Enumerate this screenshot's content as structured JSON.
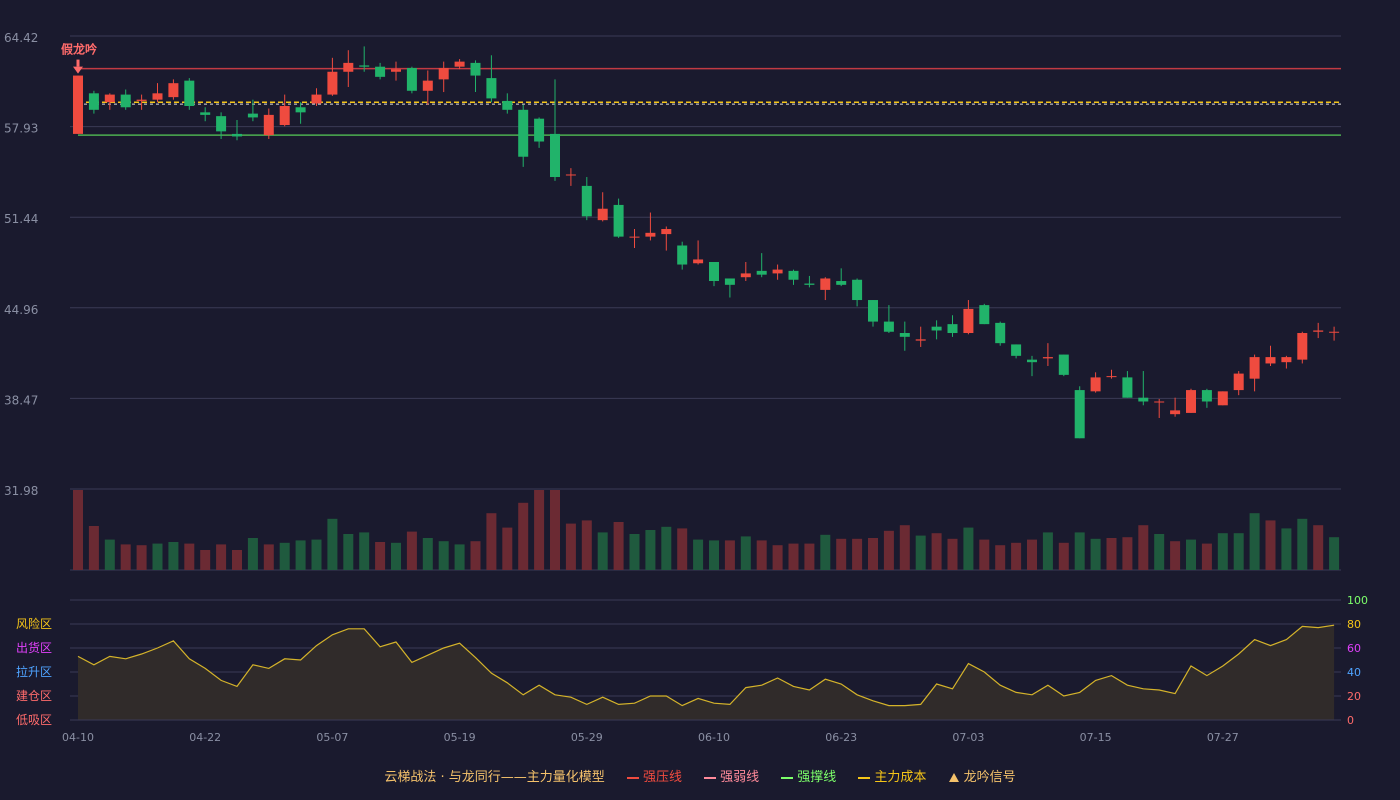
{
  "colors": {
    "background": "#1a1a2e",
    "up": "#ef4b3f",
    "down": "#21b36a",
    "grid": "#3a3a55",
    "axis_text": "#8a8fa3",
    "pressure_line": "#c23a43",
    "support_line": "#4caf50",
    "cost_line": "#f5c518",
    "osc_line": "#d4b32a",
    "osc_fill": "#302b2a",
    "signal": "#ff6b6b"
  },
  "chart_data": {
    "type": "candlestick",
    "title": "",
    "price_axis": {
      "ylim": [
        28.7,
        64.42
      ],
      "ticks": [
        "64.42",
        "57.93",
        "51.44",
        "44.96",
        "38.47",
        "31.98"
      ]
    },
    "x_ticks": [
      {
        "index": 0,
        "label": "04-10"
      },
      {
        "index": 8,
        "label": "04-22"
      },
      {
        "index": 16,
        "label": "05-07"
      },
      {
        "index": 24,
        "label": "05-19"
      },
      {
        "index": 32,
        "label": "05-29"
      },
      {
        "index": 40,
        "label": "06-10"
      },
      {
        "index": 48,
        "label": "06-23"
      },
      {
        "index": 56,
        "label": "07-03"
      },
      {
        "index": 64,
        "label": "07-15"
      },
      {
        "index": 72,
        "label": "07-27"
      }
    ],
    "candles": [
      [
        56.7,
        61.3,
        61.3,
        56.7
      ],
      [
        59.9,
        58.6,
        60.1,
        58.3
      ],
      [
        59.2,
        59.8,
        59.9,
        58.6
      ],
      [
        59.8,
        58.8,
        60.2,
        58.6
      ],
      [
        59.3,
        59.4,
        59.8,
        58.6
      ],
      [
        59.4,
        59.9,
        60.7,
        59.2
      ],
      [
        59.6,
        60.7,
        61.0,
        59.4
      ],
      [
        60.9,
        58.9,
        61.1,
        58.6
      ],
      [
        58.4,
        58.2,
        58.8,
        57.7
      ],
      [
        58.1,
        56.9,
        58.4,
        56.3
      ],
      [
        56.7,
        56.5,
        57.8,
        56.2
      ],
      [
        58.3,
        58.0,
        59.4,
        57.7
      ],
      [
        56.6,
        58.2,
        58.7,
        56.3
      ],
      [
        57.4,
        58.9,
        59.8,
        57.3
      ],
      [
        58.8,
        58.4,
        59.2,
        57.5
      ],
      [
        59.1,
        59.8,
        60.3,
        58.9
      ],
      [
        59.8,
        61.6,
        62.7,
        59.7
      ],
      [
        61.6,
        62.3,
        63.3,
        60.4
      ],
      [
        62.1,
        62.0,
        63.6,
        61.6
      ],
      [
        62.0,
        61.2,
        62.3,
        61.0
      ],
      [
        61.6,
        61.8,
        62.4,
        60.9
      ],
      [
        61.9,
        60.1,
        62.0,
        59.9
      ],
      [
        60.1,
        60.9,
        61.7,
        59.0
      ],
      [
        61.0,
        61.9,
        62.4,
        60.0
      ],
      [
        62.0,
        62.4,
        62.6,
        61.8
      ],
      [
        62.3,
        61.3,
        62.5,
        60.0
      ],
      [
        61.1,
        59.5,
        62.9,
        59.2
      ],
      [
        59.3,
        58.6,
        59.9,
        58.3
      ],
      [
        58.6,
        54.9,
        59.0,
        54.1
      ],
      [
        57.9,
        56.1,
        58.0,
        55.6
      ],
      [
        56.7,
        53.3,
        61.0,
        53.0
      ],
      [
        53.5,
        53.5,
        54.0,
        52.6
      ],
      [
        52.6,
        50.2,
        53.3,
        49.9
      ],
      [
        49.9,
        50.8,
        52.1,
        49.8
      ],
      [
        51.1,
        48.6,
        51.6,
        48.5
      ],
      [
        48.6,
        48.6,
        49.2,
        47.7
      ],
      [
        48.6,
        48.9,
        50.5,
        48.3
      ],
      [
        48.8,
        49.2,
        49.4,
        47.5
      ],
      [
        47.9,
        46.4,
        48.2,
        46.0
      ],
      [
        46.5,
        46.8,
        48.3,
        46.4
      ],
      [
        46.6,
        45.1,
        46.6,
        44.7
      ],
      [
        45.3,
        44.8,
        45.3,
        43.8
      ],
      [
        45.4,
        45.7,
        46.6,
        45.1
      ],
      [
        45.9,
        45.6,
        47.3,
        45.4
      ],
      [
        45.7,
        46.0,
        46.4,
        45.2
      ],
      [
        45.9,
        45.2,
        46.0,
        44.8
      ],
      [
        44.9,
        44.8,
        45.5,
        44.6
      ],
      [
        44.4,
        45.3,
        45.4,
        43.6
      ],
      [
        45.1,
        44.8,
        46.1,
        44.7
      ],
      [
        45.2,
        43.6,
        45.3,
        43.1
      ],
      [
        43.6,
        41.9,
        43.6,
        41.5
      ],
      [
        41.9,
        41.1,
        43.2,
        41.0
      ],
      [
        41.0,
        40.7,
        41.9,
        39.6
      ],
      [
        40.4,
        40.5,
        41.5,
        39.9
      ],
      [
        41.5,
        41.2,
        42.0,
        40.5
      ],
      [
        41.7,
        41.0,
        42.4,
        40.7
      ],
      [
        41.0,
        42.9,
        43.6,
        40.9
      ],
      [
        43.2,
        41.7,
        43.3,
        41.7
      ],
      [
        41.8,
        40.2,
        41.9,
        40.0
      ],
      [
        40.1,
        39.2,
        40.1,
        39.0
      ],
      [
        38.9,
        38.7,
        39.2,
        37.6
      ],
      [
        39.0,
        39.1,
        40.2,
        38.4
      ],
      [
        39.3,
        37.7,
        39.3,
        37.6
      ],
      [
        36.5,
        32.7,
        36.8,
        32.7
      ],
      [
        36.4,
        37.5,
        37.9,
        36.3
      ],
      [
        37.6,
        37.6,
        38.1,
        37.4
      ],
      [
        37.5,
        35.9,
        38.0,
        35.9
      ],
      [
        35.9,
        35.6,
        38.0,
        35.3
      ],
      [
        35.6,
        35.6,
        35.8,
        34.3
      ],
      [
        34.6,
        34.9,
        35.9,
        34.4
      ],
      [
        34.7,
        36.5,
        36.6,
        34.7
      ],
      [
        36.5,
        35.6,
        36.6,
        35.1
      ],
      [
        35.3,
        36.4,
        36.4,
        35.3
      ],
      [
        36.5,
        37.8,
        38.0,
        36.1
      ],
      [
        37.4,
        39.1,
        39.3,
        36.4
      ],
      [
        38.6,
        39.1,
        40.0,
        38.4
      ],
      [
        38.7,
        39.1,
        39.2,
        38.2
      ],
      [
        38.9,
        41.0,
        41.1,
        38.6
      ],
      [
        41.1,
        41.2,
        41.8,
        40.6
      ],
      [
        41.1,
        41.1,
        41.5,
        40.4
      ]
    ],
    "lines": {
      "pressure": 61.85,
      "weak": 59.05,
      "support": 56.6,
      "cost": 59.2
    },
    "signal": {
      "index": 0,
      "label": "假龙吟"
    },
    "volume": [
      [
        0,
        1
      ],
      [
        0,
        0.55
      ],
      [
        1,
        0.38
      ],
      [
        0,
        0.32
      ],
      [
        0,
        0.31
      ],
      [
        1,
        0.33
      ],
      [
        1,
        0.35
      ],
      [
        0,
        0.33
      ],
      [
        0,
        0.25
      ],
      [
        0,
        0.32
      ],
      [
        0,
        0.25
      ],
      [
        1,
        0.4
      ],
      [
        0,
        0.32
      ],
      [
        1,
        0.34
      ],
      [
        1,
        0.37
      ],
      [
        1,
        0.38
      ],
      [
        1,
        0.64
      ],
      [
        1,
        0.45
      ],
      [
        1,
        0.47
      ],
      [
        0,
        0.35
      ],
      [
        1,
        0.34
      ],
      [
        0,
        0.48
      ],
      [
        1,
        0.4
      ],
      [
        1,
        0.36
      ],
      [
        1,
        0.32
      ],
      [
        0,
        0.36
      ],
      [
        0,
        0.71
      ],
      [
        0,
        0.53
      ],
      [
        0,
        0.84
      ],
      [
        0,
        1.17
      ],
      [
        0,
        1.17
      ],
      [
        0,
        0.58
      ],
      [
        0,
        0.62
      ],
      [
        1,
        0.47
      ],
      [
        0,
        0.6
      ],
      [
        1,
        0.45
      ],
      [
        1,
        0.5
      ],
      [
        1,
        0.54
      ],
      [
        0,
        0.52
      ],
      [
        1,
        0.38
      ],
      [
        1,
        0.37
      ],
      [
        0,
        0.37
      ],
      [
        1,
        0.42
      ],
      [
        0,
        0.37
      ],
      [
        0,
        0.31
      ],
      [
        0,
        0.33
      ],
      [
        0,
        0.33
      ],
      [
        1,
        0.44
      ],
      [
        0,
        0.39
      ],
      [
        0,
        0.39
      ],
      [
        0,
        0.4
      ],
      [
        0,
        0.49
      ],
      [
        0,
        0.56
      ],
      [
        1,
        0.43
      ],
      [
        0,
        0.46
      ],
      [
        0,
        0.39
      ],
      [
        1,
        0.53
      ],
      [
        0,
        0.38
      ],
      [
        0,
        0.31
      ],
      [
        0,
        0.34
      ],
      [
        0,
        0.38
      ],
      [
        1,
        0.47
      ],
      [
        0,
        0.34
      ],
      [
        1,
        0.47
      ],
      [
        1,
        0.39
      ],
      [
        0,
        0.4
      ],
      [
        0,
        0.41
      ],
      [
        0,
        0.56
      ],
      [
        1,
        0.45
      ],
      [
        0,
        0.36
      ],
      [
        1,
        0.38
      ],
      [
        0,
        0.33
      ],
      [
        1,
        0.46
      ],
      [
        1,
        0.46
      ],
      [
        1,
        0.71
      ],
      [
        0,
        0.62
      ],
      [
        1,
        0.52
      ],
      [
        1,
        0.64
      ],
      [
        0,
        0.56
      ],
      [
        1,
        0.41
      ]
    ],
    "oscillator": {
      "ylim": [
        0,
        100
      ],
      "ticks": [
        "100",
        "80",
        "60",
        "40",
        "20",
        "0"
      ],
      "zones": [
        "风险区",
        "出货区",
        "拉升区",
        "建仓区",
        "低吸区"
      ],
      "values": [
        53,
        46,
        53,
        51,
        55,
        60,
        66,
        51,
        43,
        33,
        28,
        46,
        43,
        51,
        50,
        62,
        71,
        76,
        76,
        61,
        65,
        48,
        54,
        60,
        64,
        52,
        39,
        31,
        21,
        29,
        21,
        19,
        13,
        19,
        13,
        14,
        20,
        20,
        12,
        18,
        14,
        13,
        27,
        29,
        35,
        28,
        25,
        34,
        30,
        21,
        16,
        12,
        12,
        13,
        30,
        26,
        47,
        40,
        29,
        23,
        21,
        29,
        20,
        23,
        33,
        37,
        29,
        26,
        25,
        22,
        45,
        37,
        45,
        55,
        67,
        62,
        67,
        78,
        77,
        79
      ]
    },
    "legend": [
      {
        "type": "text",
        "label": "云梯战法 · 与龙同行——主力量化模型",
        "color": "#f5c26b"
      },
      {
        "type": "line",
        "label": "强压线",
        "color": "#ef4b3f"
      },
      {
        "type": "dash",
        "label": "强弱线",
        "color": "#ff8a9a"
      },
      {
        "type": "line",
        "label": "强撑线",
        "color": "#7cff6a"
      },
      {
        "type": "dash",
        "label": "主力成本",
        "color": "#f5c518"
      },
      {
        "type": "triangle",
        "label": "龙吟信号",
        "color": "#f5c26b"
      }
    ]
  }
}
